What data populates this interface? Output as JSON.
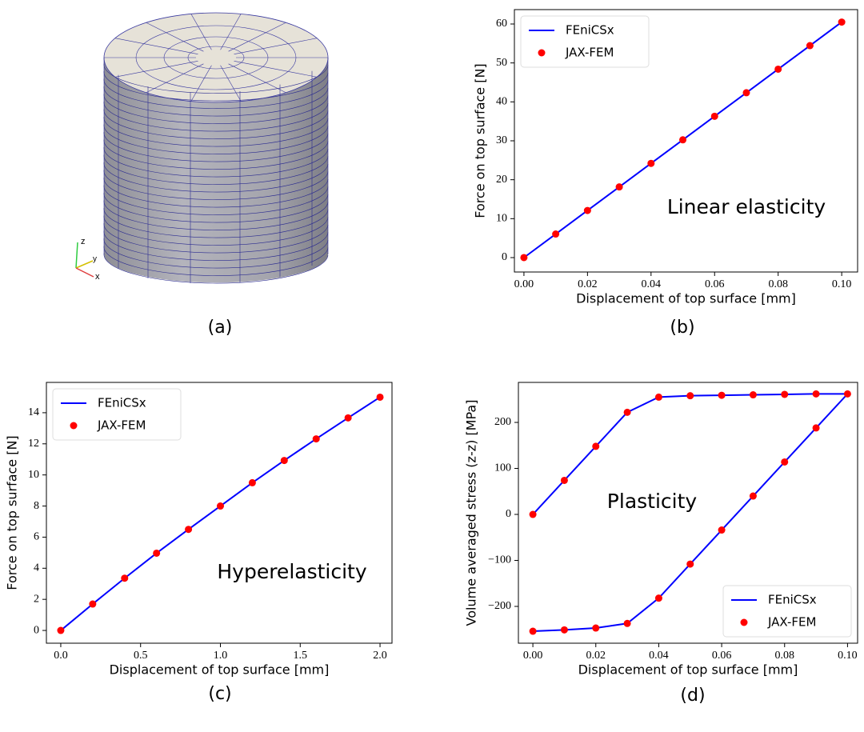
{
  "image_panel": {
    "caption": "(a)",
    "axis_labels": [
      "z",
      "y",
      "x"
    ]
  },
  "chart_data": [
    {
      "type": "line",
      "panel_label": "(b)",
      "xlabel": "Displacement of top surface [mm]",
      "ylabel": "Force on top surface [N]",
      "annotation": "Linear elasticity",
      "legend": "upper left",
      "x": [
        0,
        0.01,
        0.02,
        0.03,
        0.04,
        0.05,
        0.06,
        0.07,
        0.08,
        0.09,
        0.1
      ],
      "series": [
        {
          "name": "FEniCSx",
          "color": "#0000ff",
          "style": "line",
          "values": [
            0,
            6.05,
            12.1,
            18.15,
            24.2,
            30.25,
            36.3,
            42.35,
            48.4,
            54.45,
            60.5
          ]
        },
        {
          "name": "JAX-FEM",
          "color": "#ff0000",
          "style": "marker",
          "values": [
            0,
            6.05,
            12.1,
            18.15,
            24.2,
            30.25,
            36.3,
            42.35,
            48.4,
            54.45,
            60.5
          ]
        }
      ],
      "xlim": [
        -0.003,
        0.105
      ],
      "ylim": [
        -3.7,
        63.7
      ],
      "xticks": [
        {
          "value": 0,
          "label": "0.00"
        },
        {
          "value": 0.02,
          "label": "0.02"
        },
        {
          "value": 0.04,
          "label": "0.04"
        },
        {
          "value": 0.06,
          "label": "0.06"
        },
        {
          "value": 0.08,
          "label": "0.08"
        },
        {
          "value": 0.1,
          "label": "0.10"
        }
      ],
      "yticks": [
        0,
        10,
        20,
        30,
        40,
        50,
        60
      ]
    },
    {
      "type": "line",
      "panel_label": "(c)",
      "xlabel": "Displacement of top surface [mm]",
      "ylabel": "Force on top surface [N]",
      "annotation": "Hyperelasticity",
      "legend": "upper left",
      "x": [
        0,
        0.2,
        0.4,
        0.6,
        0.8,
        1.0,
        1.2,
        1.4,
        1.6,
        1.8,
        2.0
      ],
      "series": [
        {
          "name": "FEniCSx",
          "color": "#0000ff",
          "style": "line",
          "values": [
            0,
            1.7,
            3.36,
            4.97,
            6.5,
            8.0,
            9.5,
            10.93,
            12.32,
            13.67,
            15.0
          ]
        },
        {
          "name": "JAX-FEM",
          "color": "#ff0000",
          "style": "marker",
          "values": [
            0,
            1.7,
            3.36,
            4.97,
            6.5,
            8.0,
            9.5,
            10.93,
            12.32,
            13.67,
            15.0
          ]
        }
      ],
      "xlim": [
        -0.09,
        2.075
      ],
      "ylim": [
        -0.82,
        15.95
      ],
      "xticks": [
        {
          "value": 0,
          "label": "0.0"
        },
        0.5,
        {
          "value": 1,
          "label": "1.0"
        },
        1.5,
        {
          "value": 2,
          "label": "2.0"
        }
      ],
      "yticks": [
        0,
        2,
        4,
        6,
        8,
        10,
        12,
        14
      ]
    },
    {
      "type": "line",
      "panel_label": "(d)",
      "xlabel": "Displacement of top surface [mm]",
      "ylabel": "Volume averaged stress (z-z) [MPa]",
      "annotation": "Plasticity",
      "legend": "lower right",
      "x": [
        0,
        0.01,
        0.02,
        0.03,
        0.04,
        0.05,
        0.06,
        0.07,
        0.08,
        0.09,
        0.1,
        0.09,
        0.08,
        0.07,
        0.06,
        0.05,
        0.04,
        0.03,
        0.02,
        0.01,
        0
      ],
      "series": [
        {
          "name": "FEniCSx",
          "color": "#0000ff",
          "style": "line",
          "values": [
            0,
            74,
            148,
            222,
            255,
            258,
            259,
            260,
            261,
            262,
            262,
            188,
            114,
            40,
            -34,
            -108,
            -182,
            -237,
            -247,
            -251,
            -254
          ]
        },
        {
          "name": "JAX-FEM",
          "color": "#ff0000",
          "style": "marker",
          "values": [
            0,
            74,
            148,
            222,
            255,
            258,
            259,
            260,
            261,
            262,
            262,
            188,
            114,
            40,
            -34,
            -108,
            -182,
            -237,
            -247,
            -251,
            -254
          ]
        }
      ],
      "xlim": [
        -0.0046,
        0.1032
      ],
      "ylim": [
        -280,
        287
      ],
      "xticks": [
        {
          "value": 0,
          "label": "0.00"
        },
        {
          "value": 0.02,
          "label": "0.02"
        },
        {
          "value": 0.04,
          "label": "0.04"
        },
        {
          "value": 0.06,
          "label": "0.06"
        },
        {
          "value": 0.08,
          "label": "0.08"
        },
        {
          "value": 0.1,
          "label": "0.10"
        }
      ],
      "yticks": [
        {
          "value": -200,
          "label": "−200"
        },
        {
          "value": -100,
          "label": "−100"
        },
        0,
        100,
        200
      ]
    }
  ]
}
